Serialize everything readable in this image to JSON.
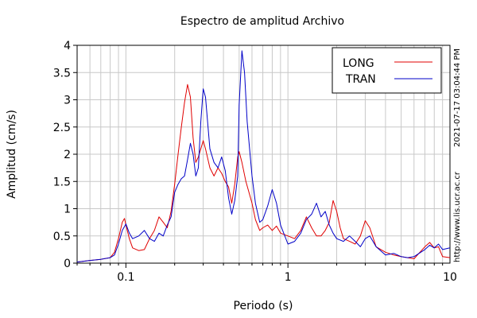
{
  "chart_data": {
    "type": "line",
    "title": "Espectro de amplitud Archivo",
    "xlabel": "Periodo (s)",
    "ylabel": "Amplitud (cm/s)",
    "xscale": "log",
    "xlim": [
      0.05,
      10
    ],
    "ylim": [
      0,
      4
    ],
    "x_ticks": [
      {
        "value": 0.1,
        "label": "0.1"
      },
      {
        "value": 1,
        "label": "1"
      },
      {
        "value": 10,
        "label": "10"
      }
    ],
    "y_ticks": [
      {
        "value": 0,
        "label": "0"
      },
      {
        "value": 0.5,
        "label": "0.5"
      },
      {
        "value": 1,
        "label": "1"
      },
      {
        "value": 1.5,
        "label": "1.5"
      },
      {
        "value": 2,
        "label": "2"
      },
      {
        "value": 2.5,
        "label": "2.5"
      },
      {
        "value": 3,
        "label": "3"
      },
      {
        "value": 3.5,
        "label": "3.5"
      },
      {
        "value": 4,
        "label": "4"
      }
    ],
    "grid": true,
    "legend_position": "top-right",
    "series": [
      {
        "name": "LONG",
        "color": "#e00000",
        "points": [
          [
            0.05,
            0.02
          ],
          [
            0.06,
            0.05
          ],
          [
            0.07,
            0.07
          ],
          [
            0.08,
            0.1
          ],
          [
            0.085,
            0.2
          ],
          [
            0.09,
            0.45
          ],
          [
            0.095,
            0.75
          ],
          [
            0.098,
            0.82
          ],
          [
            0.1,
            0.7
          ],
          [
            0.105,
            0.45
          ],
          [
            0.11,
            0.28
          ],
          [
            0.12,
            0.23
          ],
          [
            0.13,
            0.25
          ],
          [
            0.14,
            0.45
          ],
          [
            0.15,
            0.6
          ],
          [
            0.16,
            0.85
          ],
          [
            0.17,
            0.75
          ],
          [
            0.18,
            0.65
          ],
          [
            0.19,
            0.95
          ],
          [
            0.2,
            1.45
          ],
          [
            0.21,
            2.0
          ],
          [
            0.22,
            2.5
          ],
          [
            0.23,
            2.95
          ],
          [
            0.24,
            3.28
          ],
          [
            0.25,
            3.05
          ],
          [
            0.26,
            2.3
          ],
          [
            0.27,
            1.85
          ],
          [
            0.28,
            1.95
          ],
          [
            0.29,
            2.1
          ],
          [
            0.3,
            2.25
          ],
          [
            0.31,
            2.1
          ],
          [
            0.33,
            1.75
          ],
          [
            0.35,
            1.6
          ],
          [
            0.37,
            1.75
          ],
          [
            0.39,
            1.65
          ],
          [
            0.41,
            1.5
          ],
          [
            0.43,
            1.4
          ],
          [
            0.45,
            1.1
          ],
          [
            0.47,
            1.45
          ],
          [
            0.49,
            1.95
          ],
          [
            0.5,
            2.05
          ],
          [
            0.52,
            1.85
          ],
          [
            0.55,
            1.5
          ],
          [
            0.6,
            1.1
          ],
          [
            0.63,
            0.8
          ],
          [
            0.67,
            0.6
          ],
          [
            0.7,
            0.65
          ],
          [
            0.75,
            0.7
          ],
          [
            0.8,
            0.6
          ],
          [
            0.85,
            0.68
          ],
          [
            0.9,
            0.55
          ],
          [
            1.0,
            0.5
          ],
          [
            1.1,
            0.45
          ],
          [
            1.2,
            0.6
          ],
          [
            1.3,
            0.85
          ],
          [
            1.4,
            0.65
          ],
          [
            1.5,
            0.5
          ],
          [
            1.6,
            0.5
          ],
          [
            1.7,
            0.6
          ],
          [
            1.8,
            0.75
          ],
          [
            1.9,
            1.15
          ],
          [
            2.0,
            0.95
          ],
          [
            2.1,
            0.65
          ],
          [
            2.2,
            0.45
          ],
          [
            2.4,
            0.4
          ],
          [
            2.6,
            0.35
          ],
          [
            2.8,
            0.5
          ],
          [
            3.0,
            0.78
          ],
          [
            3.2,
            0.65
          ],
          [
            3.5,
            0.3
          ],
          [
            4.0,
            0.2
          ],
          [
            4.5,
            0.15
          ],
          [
            5.0,
            0.12
          ],
          [
            6.0,
            0.08
          ],
          [
            7.0,
            0.3
          ],
          [
            7.5,
            0.38
          ],
          [
            8.0,
            0.28
          ],
          [
            8.5,
            0.3
          ],
          [
            9.0,
            0.12
          ],
          [
            10.0,
            0.1
          ]
        ]
      },
      {
        "name": "TRAN",
        "color": "#0000c8",
        "points": [
          [
            0.05,
            0.02
          ],
          [
            0.06,
            0.05
          ],
          [
            0.07,
            0.07
          ],
          [
            0.08,
            0.1
          ],
          [
            0.085,
            0.15
          ],
          [
            0.09,
            0.35
          ],
          [
            0.095,
            0.6
          ],
          [
            0.1,
            0.72
          ],
          [
            0.105,
            0.55
          ],
          [
            0.11,
            0.45
          ],
          [
            0.12,
            0.5
          ],
          [
            0.13,
            0.6
          ],
          [
            0.14,
            0.45
          ],
          [
            0.15,
            0.4
          ],
          [
            0.16,
            0.55
          ],
          [
            0.17,
            0.5
          ],
          [
            0.18,
            0.7
          ],
          [
            0.19,
            0.85
          ],
          [
            0.2,
            1.3
          ],
          [
            0.21,
            1.45
          ],
          [
            0.22,
            1.55
          ],
          [
            0.23,
            1.6
          ],
          [
            0.24,
            1.9
          ],
          [
            0.25,
            2.2
          ],
          [
            0.26,
            2.0
          ],
          [
            0.27,
            1.6
          ],
          [
            0.28,
            1.75
          ],
          [
            0.29,
            2.6
          ],
          [
            0.3,
            3.2
          ],
          [
            0.31,
            3.05
          ],
          [
            0.33,
            2.1
          ],
          [
            0.35,
            1.85
          ],
          [
            0.37,
            1.75
          ],
          [
            0.39,
            1.95
          ],
          [
            0.41,
            1.7
          ],
          [
            0.43,
            1.2
          ],
          [
            0.45,
            0.9
          ],
          [
            0.47,
            1.15
          ],
          [
            0.49,
            1.6
          ],
          [
            0.5,
            2.9
          ],
          [
            0.52,
            3.9
          ],
          [
            0.54,
            3.5
          ],
          [
            0.56,
            2.6
          ],
          [
            0.6,
            1.6
          ],
          [
            0.63,
            1.1
          ],
          [
            0.67,
            0.75
          ],
          [
            0.7,
            0.8
          ],
          [
            0.75,
            1.05
          ],
          [
            0.8,
            1.35
          ],
          [
            0.85,
            1.1
          ],
          [
            0.9,
            0.7
          ],
          [
            1.0,
            0.35
          ],
          [
            1.1,
            0.4
          ],
          [
            1.2,
            0.55
          ],
          [
            1.3,
            0.8
          ],
          [
            1.4,
            0.9
          ],
          [
            1.5,
            1.1
          ],
          [
            1.6,
            0.85
          ],
          [
            1.7,
            0.95
          ],
          [
            1.8,
            0.7
          ],
          [
            1.9,
            0.55
          ],
          [
            2.0,
            0.45
          ],
          [
            2.2,
            0.4
          ],
          [
            2.4,
            0.5
          ],
          [
            2.6,
            0.4
          ],
          [
            2.8,
            0.3
          ],
          [
            3.0,
            0.45
          ],
          [
            3.2,
            0.5
          ],
          [
            3.5,
            0.3
          ],
          [
            4.0,
            0.15
          ],
          [
            4.5,
            0.18
          ],
          [
            5.0,
            0.12
          ],
          [
            5.5,
            0.1
          ],
          [
            6.0,
            0.12
          ],
          [
            7.0,
            0.25
          ],
          [
            7.5,
            0.33
          ],
          [
            8.0,
            0.28
          ],
          [
            8.5,
            0.35
          ],
          [
            9.0,
            0.25
          ],
          [
            10.0,
            0.28
          ]
        ]
      }
    ]
  },
  "side_text": {
    "timestamp": "2021-07-17 03:04:44 PM",
    "url": "http://www.lis.ucr.ac.cr"
  }
}
